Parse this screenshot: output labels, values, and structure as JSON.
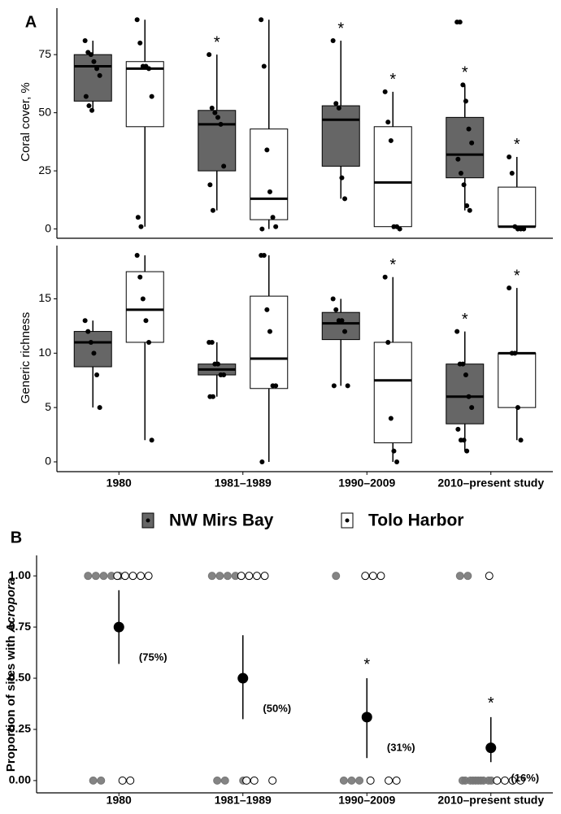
{
  "chart_data": [
    {
      "type": "box",
      "panel_label": "A",
      "ylabel": "Coral cover, %",
      "ylim": [
        -4,
        95
      ],
      "yticks": [
        0,
        25,
        50,
        75
      ],
      "significance_label": "*",
      "series": [
        {
          "name": "NW Mirs Bay",
          "color": "#666666",
          "boxes": [
            {
              "whislo": 51,
              "q1": 55,
              "med": 70,
              "q3": 75,
              "whishi": 81
            },
            {
              "whislo": 8,
              "q1": 25,
              "med": 45,
              "q3": 51,
              "whishi": 75
            },
            {
              "whislo": 13,
              "q1": 27,
              "med": 47,
              "q3": 53,
              "whishi": 81
            },
            {
              "whislo": 8,
              "q1": 22,
              "med": 32,
              "q3": 48,
              "whishi": 62
            }
          ],
          "points": [
            [
              81,
              76,
              75,
              72,
              69,
              66,
              57,
              53,
              51
            ],
            [
              75,
              52,
              50,
              48,
              45,
              27,
              19,
              8
            ],
            [
              81,
              54,
              52,
              22,
              13
            ],
            [
              89,
              89,
              62,
              55,
              43,
              37,
              30,
              24,
              19,
              10,
              8
            ]
          ],
          "significant": [
            false,
            true,
            true,
            true
          ]
        },
        {
          "name": "Tolo Harbor",
          "color": "#ffffff",
          "boxes": [
            {
              "whislo": 1,
              "q1": 44,
              "med": 69,
              "q3": 72,
              "whishi": 90
            },
            {
              "whislo": 0,
              "q1": 4,
              "med": 13,
              "q3": 43,
              "whishi": 90
            },
            {
              "whislo": 0,
              "q1": 1,
              "med": 20,
              "q3": 44,
              "whishi": 59
            },
            {
              "whislo": 0,
              "q1": 1,
              "med": 1,
              "q3": 18,
              "whishi": 31
            }
          ],
          "points": [
            [
              90,
              80,
              70,
              70,
              69,
              57,
              5,
              1
            ],
            [
              90,
              70,
              34,
              16,
              5,
              1,
              0
            ],
            [
              59,
              46,
              38,
              1,
              1,
              0
            ],
            [
              31,
              24,
              1,
              0,
              0,
              0
            ]
          ],
          "significant": [
            false,
            false,
            true,
            true
          ]
        }
      ]
    },
    {
      "type": "box",
      "ylabel": "Generic richness",
      "ylim": [
        -0.9,
        19.9
      ],
      "yticks": [
        0,
        5,
        10,
        15
      ],
      "significance_label": "*",
      "categories": [
        "1980",
        "1981–1989",
        "1990–2009",
        "2010–present study"
      ],
      "series": [
        {
          "color": "#666666",
          "boxes": [
            {
              "whislo": 5,
              "q1": 8.75,
              "med": 11,
              "q3": 12,
              "whishi": 13
            },
            {
              "whislo": 6,
              "q1": 8,
              "med": 8.5,
              "q3": 9,
              "whishi": 11
            },
            {
              "whislo": 7,
              "q1": 11.25,
              "med": 12.75,
              "q3": 13.75,
              "whishi": 15
            },
            {
              "whislo": 1,
              "q1": 3.5,
              "med": 6,
              "q3": 9,
              "whishi": 12
            }
          ],
          "points": [
            [
              13,
              12,
              11,
              10,
              8,
              5
            ],
            [
              11,
              11,
              9,
              9,
              8,
              8,
              6,
              6
            ],
            [
              15,
              14,
              13,
              13,
              12,
              7,
              7
            ],
            [
              12,
              9,
              9,
              8,
              6,
              5,
              3,
              2,
              2,
              1
            ]
          ],
          "significant": [
            false,
            false,
            false,
            true
          ]
        },
        {
          "color": "#ffffff",
          "boxes": [
            {
              "whislo": 2,
              "q1": 11,
              "med": 14,
              "q3": 17.5,
              "whishi": 19
            },
            {
              "whislo": 0,
              "q1": 6.75,
              "med": 9.5,
              "q3": 15.25,
              "whishi": 19
            },
            {
              "whislo": 0,
              "q1": 1.75,
              "med": 7.5,
              "q3": 11,
              "whishi": 17
            },
            {
              "whislo": 2,
              "q1": 5,
              "med": 10,
              "q3": 10,
              "whishi": 16
            }
          ],
          "points": [
            [
              19,
              17,
              15,
              13,
              11,
              2
            ],
            [
              19,
              19,
              14,
              12,
              7,
              7,
              0
            ],
            [
              17,
              11,
              4,
              1,
              0
            ],
            [
              16,
              10,
              10,
              5,
              2
            ]
          ],
          "significant": [
            false,
            false,
            true,
            true
          ]
        }
      ]
    },
    {
      "type": "pointrange",
      "panel_label": "B",
      "ylabel": [
        "Proportion of sites with",
        "Acropora"
      ],
      "ylim": [
        -0.06,
        1.1
      ],
      "yticks": [
        {
          "value": 0,
          "label": "0.00"
        },
        {
          "value": 0.25,
          "label": "0.25"
        },
        {
          "value": 0.5,
          "label": "0.50"
        },
        {
          "value": 0.75,
          "label": "0.75"
        },
        {
          "value": 1,
          "label": "1.00"
        }
      ],
      "categories": [
        "1980",
        "1981–1989",
        "1990–2009",
        "2010–present study"
      ],
      "values": [
        0.75,
        0.5,
        0.31,
        0.16
      ],
      "value_labels": [
        "(75%)",
        "(50%)",
        "(31%)",
        "(16%)"
      ],
      "lower": [
        0.57,
        0.3,
        0.11,
        0.09
      ],
      "upper": [
        0.93,
        0.71,
        0.5,
        0.31
      ],
      "significant": [
        false,
        false,
        true,
        true
      ],
      "significance_label": "*",
      "sites": [
        {
          "color": "#777777",
          "values": [
            [
              1,
              1,
              1,
              1,
              1,
              0,
              0
            ],
            [
              1,
              1,
              1,
              1,
              0,
              0,
              0
            ],
            [
              1,
              0,
              0,
              0
            ],
            [
              1,
              1,
              0,
              0,
              0,
              0,
              0,
              0,
              0,
              0,
              0,
              0
            ]
          ]
        },
        {
          "color": "#ffffff",
          "values": [
            [
              1,
              1,
              1,
              1,
              1,
              0,
              0
            ],
            [
              1,
              1,
              1,
              1,
              0,
              0,
              0
            ],
            [
              1,
              1,
              1,
              0,
              0,
              0
            ],
            [
              1,
              0,
              0,
              0,
              0
            ]
          ]
        }
      ]
    }
  ]
}
